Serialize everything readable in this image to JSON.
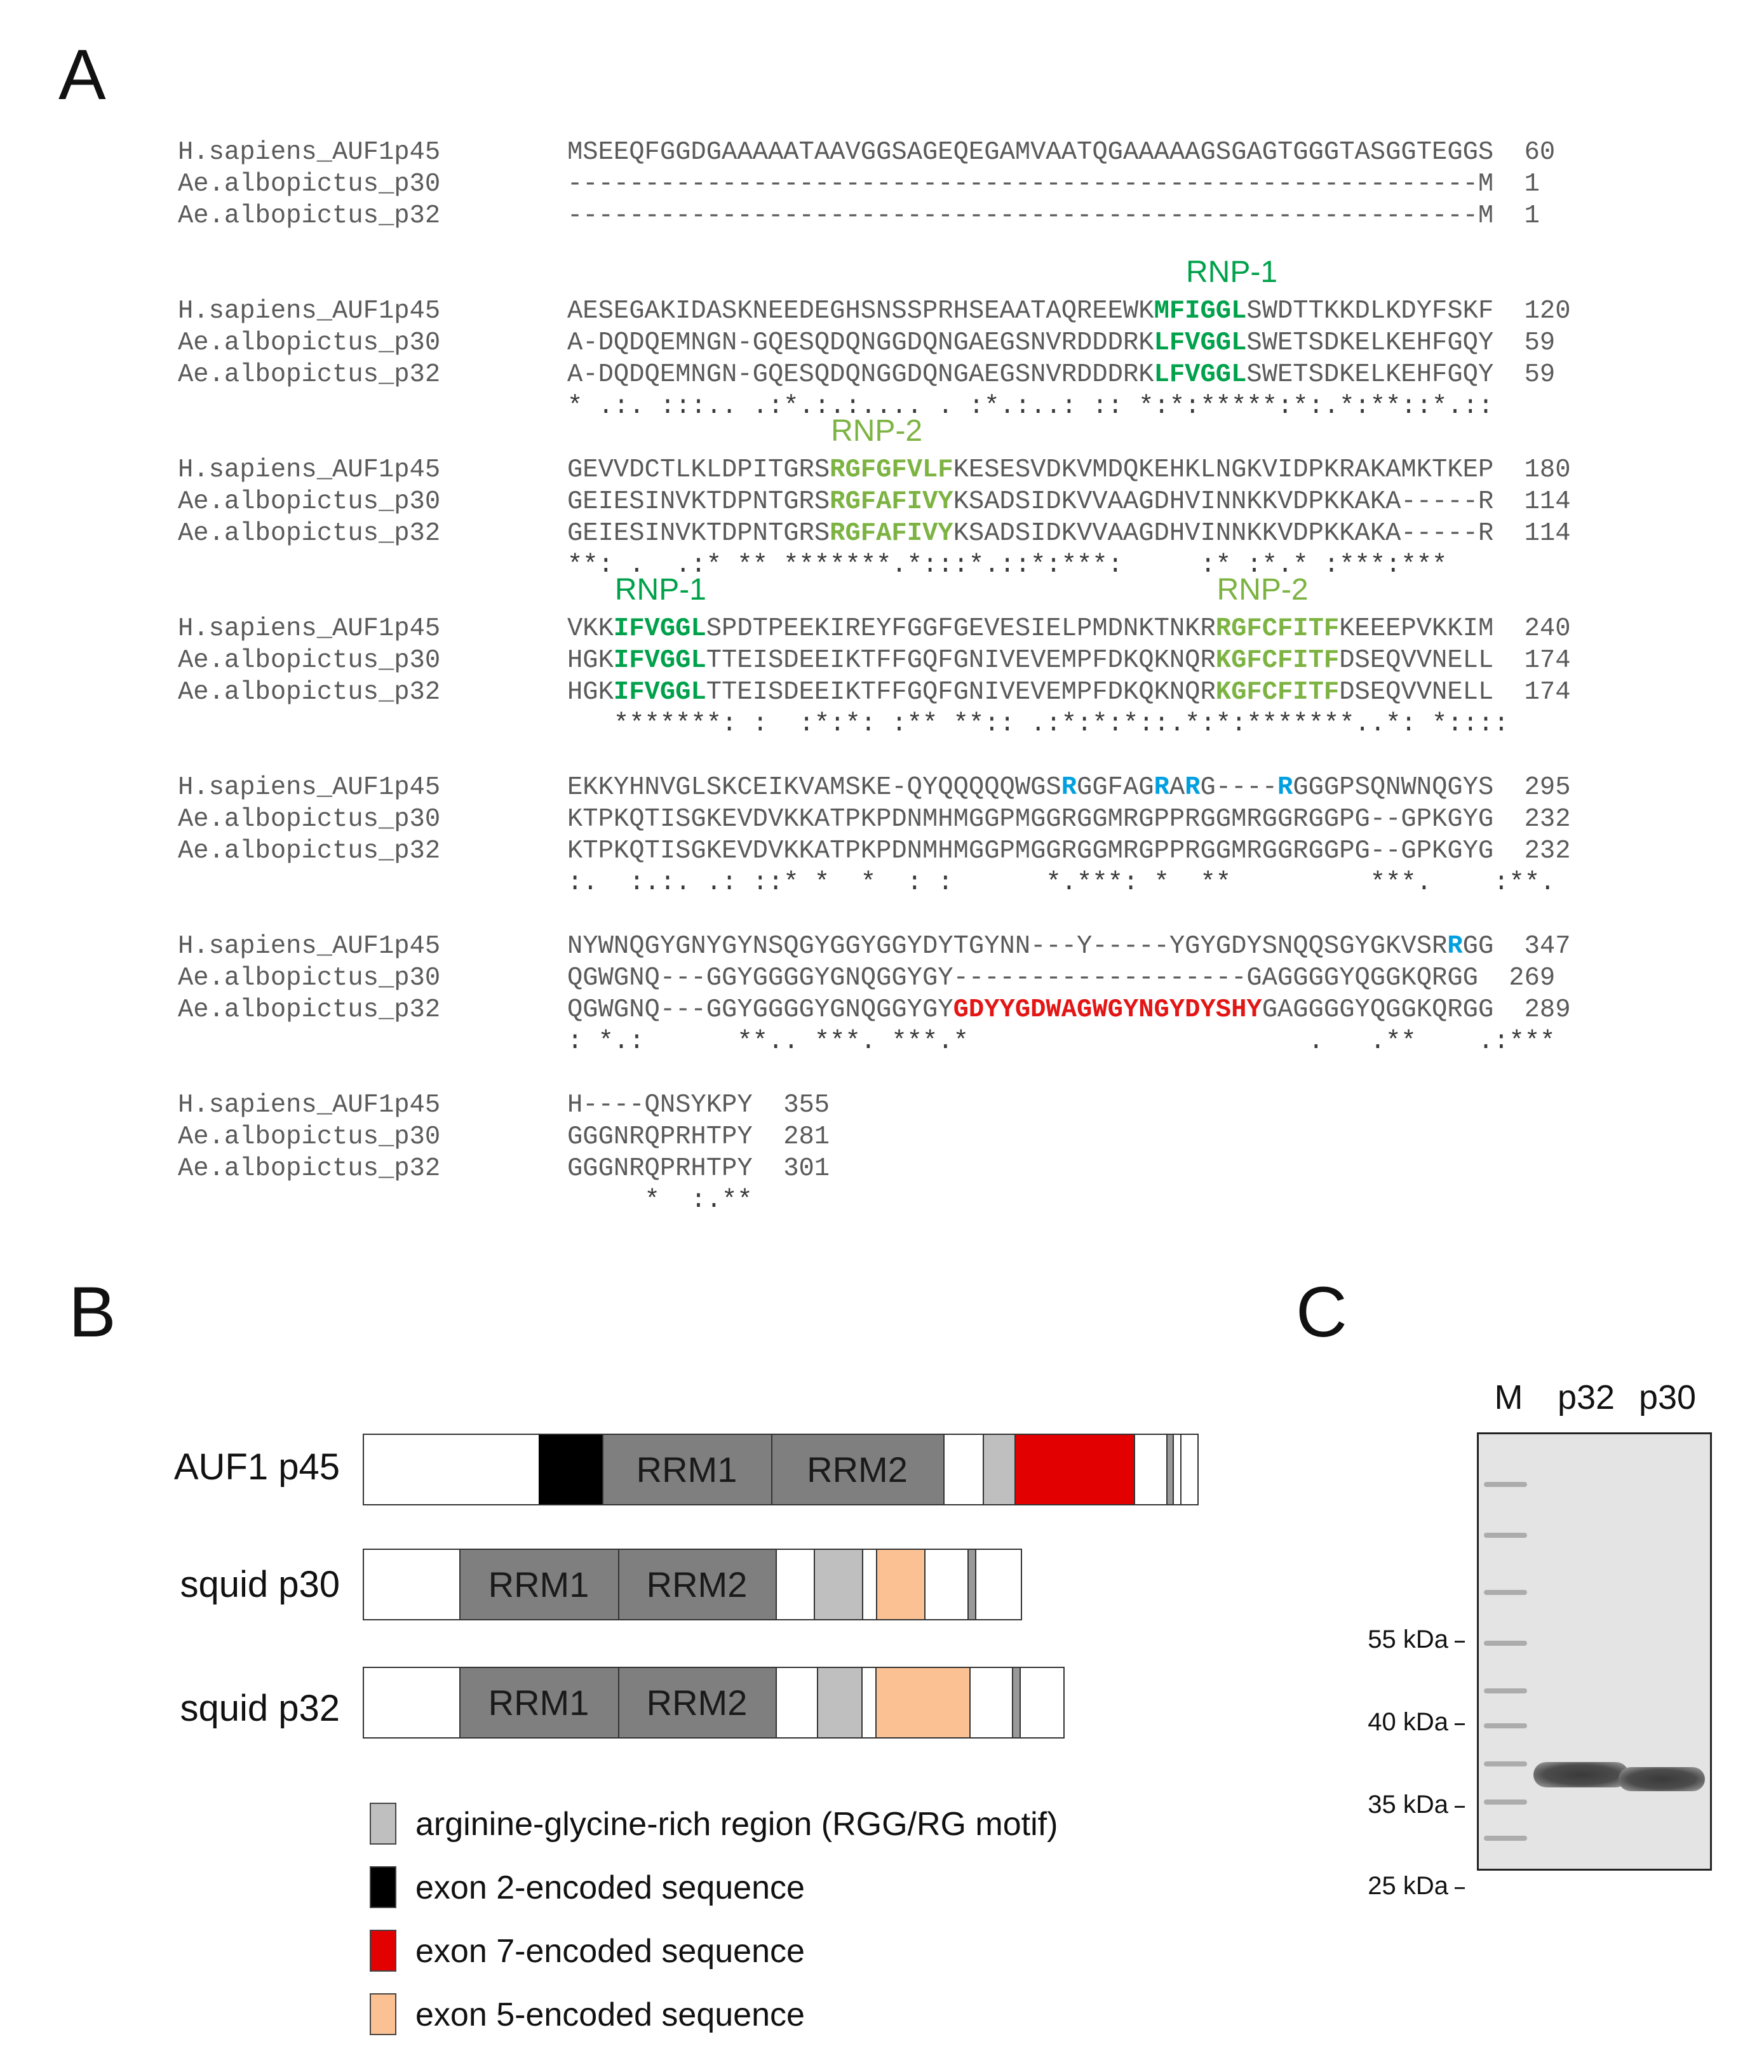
{
  "panels": {
    "a": "A",
    "b": "B",
    "c": "C"
  },
  "alignment": {
    "blocks": [
      {
        "labels": [],
        "rows": [
          {
            "name": "H.sapiens_AUF1p45",
            "seq": [
              {
                "t": "MSEEQFGGDGAAAAATAAVGGSAGEQEGAMVAATQGAAAAAGSGAGTGGGTASGGTEGGS",
                "c": ""
              }
            ],
            "num": "60"
          },
          {
            "name": "Ae.albopictus_p30",
            "seq": [
              {
                "t": "-----------------------------------------------------------M",
                "c": ""
              }
            ],
            "num": "1"
          },
          {
            "name": "Ae.albopictus_p32",
            "seq": [
              {
                "t": "-----------------------------------------------------------M",
                "c": ""
              }
            ],
            "num": "1"
          }
        ],
        "cons": ""
      },
      {
        "labels": [
          {
            "text": "RNP-1",
            "c": "green",
            "col": 40
          }
        ],
        "rows": [
          {
            "name": "H.sapiens_AUF1p45",
            "seq": [
              {
                "t": "AESEGAKIDASKNEEDEGHSNSSPRHSEAATAQREEWK",
                "c": ""
              },
              {
                "t": "MFIGGL",
                "c": "green"
              },
              {
                "t": "SWDTTKKDLKDYFSKF",
                "c": ""
              }
            ],
            "num": "120"
          },
          {
            "name": "Ae.albopictus_p30",
            "seq": [
              {
                "t": "A-DQDQEMNGN-GQESQDQNGGDQNGAEGSNVRDDDRK",
                "c": ""
              },
              {
                "t": "LFVGGL",
                "c": "green"
              },
              {
                "t": "SWETSDKELKEHFGQY",
                "c": ""
              }
            ],
            "num": "59"
          },
          {
            "name": "Ae.albopictus_p32",
            "seq": [
              {
                "t": "A-DQDQEMNGN-GQESQDQNGGDQNGAEGSNVRDDDRK",
                "c": ""
              },
              {
                "t": "LFVGGL",
                "c": "green"
              },
              {
                "t": "SWETSDKELKEHFGQY",
                "c": ""
              }
            ],
            "num": "59"
          }
        ],
        "cons": "* .:. :::.. .:*.:.:.... . :*.:..: :: *:*:*****:*:.*:**::*.::"
      },
      {
        "labels": [
          {
            "text": "RNP-2",
            "c": "lime",
            "col": 17
          }
        ],
        "rows": [
          {
            "name": "H.sapiens_AUF1p45",
            "seq": [
              {
                "t": "GEVVDCTLKLDPITGRS",
                "c": ""
              },
              {
                "t": "RGFGFVLF",
                "c": "lime"
              },
              {
                "t": "KESESVDKVMDQKEHKLNGKVIDPKRAKAMKTKEP",
                "c": ""
              }
            ],
            "num": "180"
          },
          {
            "name": "Ae.albopictus_p30",
            "seq": [
              {
                "t": "GEIESINVKTDPNTGRS",
                "c": ""
              },
              {
                "t": "RGFAFIVY",
                "c": "lime"
              },
              {
                "t": "KSADSIDKVVAAGDHVINNKKVDPKKAKA-----R",
                "c": ""
              }
            ],
            "num": "114"
          },
          {
            "name": "Ae.albopictus_p32",
            "seq": [
              {
                "t": "GEIESINVKTDPNTGRS",
                "c": ""
              },
              {
                "t": "RGFAFIVY",
                "c": "lime"
              },
              {
                "t": "KSADSIDKVVAAGDHVINNKKVDPKKAKA-----R",
                "c": ""
              }
            ],
            "num": "114"
          }
        ],
        "cons": "**: .  .:* ** *******.*:::*.::*:***:     :* :*.* :***:***"
      },
      {
        "labels": [
          {
            "text": "RNP-1",
            "c": "green",
            "col": 3
          },
          {
            "text": "RNP-2",
            "c": "lime",
            "col": 42
          }
        ],
        "rows": [
          {
            "name": "H.sapiens_AUF1p45",
            "seq": [
              {
                "t": "VKK",
                "c": ""
              },
              {
                "t": "IFVGGL",
                "c": "green"
              },
              {
                "t": "SPDTPEEKIREYFGGFGEVESIELPMDNKTNKR",
                "c": ""
              },
              {
                "t": "RGFCFITF",
                "c": "lime"
              },
              {
                "t": "KEEEPVKKIM",
                "c": ""
              }
            ],
            "num": "240"
          },
          {
            "name": "Ae.albopictus_p30",
            "seq": [
              {
                "t": "HGK",
                "c": ""
              },
              {
                "t": "IFVGGL",
                "c": "green"
              },
              {
                "t": "TTEISDEEIKTFFGQFGNIVEVEMPFDKQKNQR",
                "c": ""
              },
              {
                "t": "KGFCFITF",
                "c": "lime"
              },
              {
                "t": "DSEQVVNELL",
                "c": ""
              }
            ],
            "num": "174"
          },
          {
            "name": "Ae.albopictus_p32",
            "seq": [
              {
                "t": "HGK",
                "c": ""
              },
              {
                "t": "IFVGGL",
                "c": "green"
              },
              {
                "t": "TTEISDEEIKTFFGQFGNIVEVEMPFDKQKNQR",
                "c": ""
              },
              {
                "t": "KGFCFITF",
                "c": "lime"
              },
              {
                "t": "DSEQVVNELL",
                "c": ""
              }
            ],
            "num": "174"
          }
        ],
        "cons": "   *******: :  :*:*: :** **:: .:*:*:*::.*:*:*******..*: *::::"
      },
      {
        "labels": [],
        "rows": [
          {
            "name": "H.sapiens_AUF1p45",
            "seq": [
              {
                "t": "EKKYHNVGLSKCEIKVAMSKE-QYQQQQQWGS",
                "c": ""
              },
              {
                "t": "R",
                "c": "cyan"
              },
              {
                "t": "GGFAG",
                "c": ""
              },
              {
                "t": "R",
                "c": "cyan"
              },
              {
                "t": "A",
                "c": ""
              },
              {
                "t": "R",
                "c": "cyan"
              },
              {
                "t": "G----",
                "c": ""
              },
              {
                "t": "R",
                "c": "cyan"
              },
              {
                "t": "GGGPSQNWNQGYS",
                "c": ""
              }
            ],
            "num": "295"
          },
          {
            "name": "Ae.albopictus_p30",
            "seq": [
              {
                "t": "KTPKQTISGKEVDVKKATPKPDNMHMGGPMGGRGGMRGPPRGGMRGGRGGPG--GPKGYG",
                "c": ""
              }
            ],
            "num": "232"
          },
          {
            "name": "Ae.albopictus_p32",
            "seq": [
              {
                "t": "KTPKQTISGKEVDVKKATPKPDNMHMGGPMGGRGGMRGPPRGGMRGGRGGPG--GPKGYG",
                "c": ""
              }
            ],
            "num": "232"
          }
        ],
        "cons": ":.  :.:. .: ::* *  *  : :      *.***: *  **         ***.    :**."
      },
      {
        "labels": [],
        "rows": [
          {
            "name": "H.sapiens_AUF1p45",
            "seq": [
              {
                "t": "NYWNQGYGNYGYNSQGYGGYGGYDYTGYNN---Y-----YGYGDYSNQQSGYGKVSR",
                "c": ""
              },
              {
                "t": "R",
                "c": "cyan"
              },
              {
                "t": "GG",
                "c": ""
              }
            ],
            "num": "347"
          },
          {
            "name": "Ae.albopictus_p30",
            "seq": [
              {
                "t": "QGWGNQ---GGYGGGGYGNQGGYGY-------------------GAGGGGYQGGKQRGG",
                "c": ""
              }
            ],
            "num": "269"
          },
          {
            "name": "Ae.albopictus_p32",
            "seq": [
              {
                "t": "QGWGNQ---GGYGGGGYGNQGGYGY",
                "c": ""
              },
              {
                "t": "GDYYGDWAGWGYNGYDYSHY",
                "c": "red"
              },
              {
                "t": "GAGGGGYQGGKQRGG",
                "c": ""
              }
            ],
            "num": "289"
          }
        ],
        "cons": ": *.:      **.. ***. ***.*                      .   .**    .:***"
      },
      {
        "labels": [],
        "rows": [
          {
            "name": "H.sapiens_AUF1p45",
            "seq": [
              {
                "t": "H----QNSYKPY",
                "c": ""
              }
            ],
            "num": "355"
          },
          {
            "name": "Ae.albopictus_p30",
            "seq": [
              {
                "t": "GGGNRQPRHTPY",
                "c": ""
              }
            ],
            "num": "281"
          },
          {
            "name": "Ae.albopictus_p32",
            "seq": [
              {
                "t": "GGGNRQPRHTPY",
                "c": ""
              }
            ],
            "num": "301"
          }
        ],
        "cons": "     *  :.**"
      }
    ]
  },
  "domain_diagram": {
    "proteins": [
      {
        "label": "AUF1 p45"
      },
      {
        "label": "squid p30"
      },
      {
        "label": "squid p32"
      }
    ],
    "domain_labels": {
      "rrm1": "RRM1",
      "rrm2": "RRM2"
    },
    "legend": [
      {
        "text": "arginine-glycine-rich region (RGG/RG motif)",
        "color": "#bfbfbf"
      },
      {
        "text": "exon 2-encoded sequence",
        "color": "#000000"
      },
      {
        "text": "exon 7-encoded sequence",
        "color": "#e30000"
      },
      {
        "text": "exon 5-encoded sequence",
        "color": "#fbc193"
      }
    ],
    "colors": {
      "rrm": "#7f7f7f",
      "rgg": "#bfbfbf",
      "exon2": "#000000",
      "exon7": "#e30000",
      "exon5": "#fbc193"
    }
  },
  "gel": {
    "lanes": [
      "M",
      "p32",
      "p30"
    ],
    "markers": [
      "55 kDa",
      "40 kDa",
      "35 kDa",
      "25 kDa"
    ]
  }
}
